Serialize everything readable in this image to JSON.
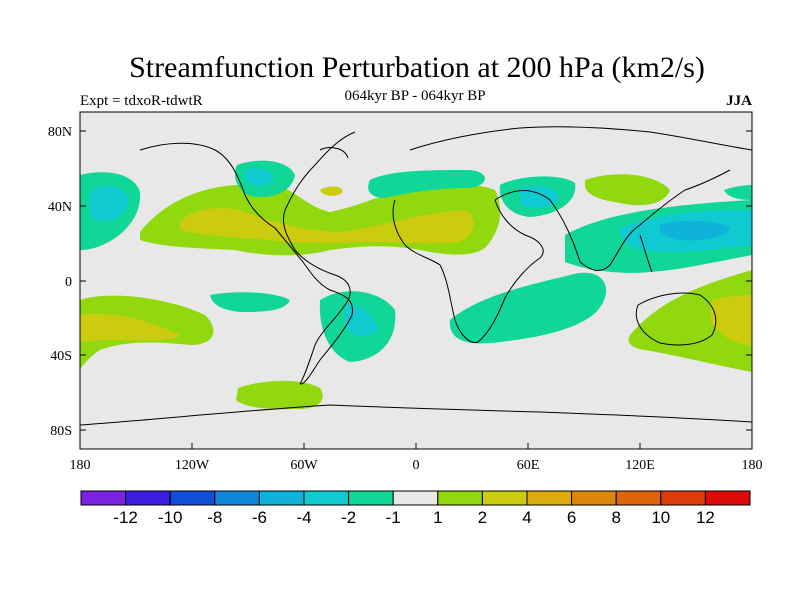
{
  "title": "Streamfunction Perturbation at 200 hPa (km2/s)",
  "subtitle_left": "Expt = tdxoR-tdwtR",
  "subtitle_center": "064kyr BP - 064kyr BP",
  "subtitle_right": "JJA",
  "x_ticks": [
    "180",
    "120W",
    "60W",
    "0",
    "60E",
    "120E",
    "180"
  ],
  "y_ticks": [
    "80N",
    "40N",
    "0",
    "40S",
    "80S"
  ],
  "colorbar": {
    "colors": [
      "#7a22e0",
      "#3c1ee0",
      "#0f4fd6",
      "#0f86d9",
      "#0fb2d9",
      "#10cad2",
      "#10d798",
      "#e8e8e8",
      "#92d80e",
      "#cccc0e",
      "#dcaa0e",
      "#dd860c",
      "#dd640a",
      "#dd3c0a",
      "#dd0a0a"
    ],
    "labels": [
      "-12",
      "-10",
      "-8",
      "-6",
      "-4",
      "-2",
      "-1",
      "1",
      "2",
      "4",
      "6",
      "8",
      "10",
      "12"
    ]
  },
  "map_colors": {
    "background": "#e8e8e8",
    "pos_1": "#92d80e",
    "pos_2": "#cccc0e",
    "neg_1": "#10d798",
    "neg_2": "#10cad2",
    "neg_3": "#0fb2d9"
  }
}
